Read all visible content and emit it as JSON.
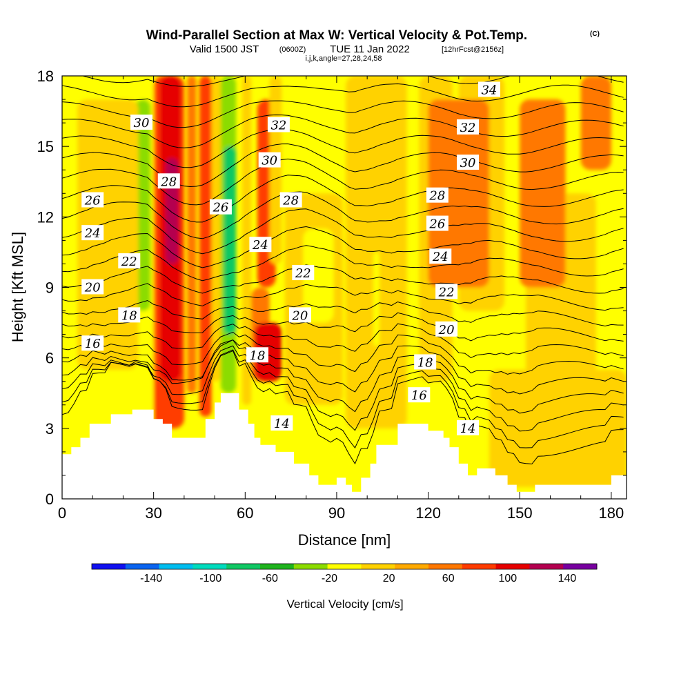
{
  "header": {
    "title_main": "Wind-Parallel Section at Max W: Vertical Velocity & Pot.Temp.",
    "title_mark": "(C)",
    "valid_prefix": "Valid 1500 JST",
    "valid_utc": "(0600Z)",
    "valid_date": "TUE 11 Jan 2022",
    "forecast": "[12hrFcst@2156z]",
    "indices": "i,j,k,angle=27,28,24,58"
  },
  "chart_data": {
    "type": "heatmap",
    "xlabel": "Distance [nm]",
    "ylabel": "Height [Kft MSL]",
    "xlim": [
      0,
      185
    ],
    "ylim": [
      0,
      18
    ],
    "xticks": [
      0,
      30,
      60,
      90,
      120,
      150,
      180
    ],
    "yticks": [
      0,
      3,
      6,
      9,
      12,
      15,
      18
    ],
    "grid": false,
    "background_color": "#ffff00",
    "colorbar": {
      "title": "Vertical Velocity [cm/s]",
      "ticks": [
        -140,
        -100,
        -60,
        -20,
        20,
        60,
        100,
        140
      ],
      "boundaries": [
        -180,
        -160,
        -140,
        -120,
        -100,
        -80,
        -60,
        -40,
        -20,
        0,
        20,
        40,
        60,
        80,
        100,
        120,
        140,
        160
      ],
      "colors": [
        "#1010f0",
        "#0a64f0",
        "#00bef0",
        "#00dcbe",
        "#10c864",
        "#20b41e",
        "#8cdc00",
        "#ffff00",
        "#ffd200",
        "#ffaa00",
        "#ff7800",
        "#ff3c00",
        "#e60000",
        "#b40050",
        "#7800a0"
      ]
    },
    "terrain_kft": [
      [
        0,
        1.9
      ],
      [
        3,
        1.9
      ],
      [
        3,
        2.2
      ],
      [
        6,
        2.2
      ],
      [
        6,
        2.6
      ],
      [
        9,
        2.6
      ],
      [
        9,
        3.2
      ],
      [
        16,
        3.2
      ],
      [
        16,
        3.6
      ],
      [
        23,
        3.6
      ],
      [
        23,
        3.8
      ],
      [
        30,
        3.8
      ],
      [
        30,
        3.4
      ],
      [
        33,
        3.4
      ],
      [
        33,
        3.2
      ],
      [
        36,
        3.2
      ],
      [
        36,
        2.6
      ],
      [
        47,
        2.6
      ],
      [
        47,
        3.4
      ],
      [
        50,
        3.4
      ],
      [
        50,
        4.1
      ],
      [
        52,
        4.1
      ],
      [
        52,
        4.5
      ],
      [
        58,
        4.5
      ],
      [
        58,
        3.8
      ],
      [
        61,
        3.8
      ],
      [
        61,
        3.2
      ],
      [
        63,
        3.2
      ],
      [
        63,
        2.6
      ],
      [
        65,
        2.6
      ],
      [
        65,
        2.3
      ],
      [
        70,
        2.3
      ],
      [
        70,
        2.0
      ],
      [
        76,
        2.0
      ],
      [
        76,
        1.5
      ],
      [
        81,
        1.5
      ],
      [
        81,
        1.0
      ],
      [
        84,
        1.0
      ],
      [
        84,
        0.6
      ],
      [
        90,
        0.6
      ],
      [
        90,
        0.9
      ],
      [
        93,
        0.9
      ],
      [
        93,
        0.6
      ],
      [
        95,
        0.6
      ],
      [
        95,
        0.3
      ],
      [
        98,
        0.3
      ],
      [
        98,
        0.9
      ],
      [
        101,
        0.9
      ],
      [
        101,
        1.5
      ],
      [
        103,
        1.5
      ],
      [
        103,
        2.3
      ],
      [
        110,
        2.3
      ],
      [
        110,
        3.2
      ],
      [
        120,
        3.2
      ],
      [
        120,
        2.9
      ],
      [
        125,
        2.9
      ],
      [
        125,
        2.6
      ],
      [
        127,
        2.6
      ],
      [
        127,
        2.2
      ],
      [
        130,
        2.2
      ],
      [
        130,
        1.5
      ],
      [
        133,
        1.5
      ],
      [
        133,
        1.0
      ],
      [
        136,
        1.0
      ],
      [
        136,
        1.3
      ],
      [
        142,
        1.3
      ],
      [
        142,
        1.0
      ],
      [
        146,
        1.0
      ],
      [
        146,
        0.6
      ],
      [
        149,
        0.6
      ],
      [
        149,
        0.3
      ],
      [
        155,
        0.3
      ],
      [
        155,
        0.6
      ],
      [
        180,
        0.6
      ],
      [
        180,
        1.0
      ],
      [
        185,
        1.0
      ]
    ],
    "velocity_bands": [
      {
        "x": [
          23,
          30
        ],
        "y": [
          3.0,
          18
        ],
        "value": -30
      },
      {
        "x": [
          24,
          29
        ],
        "y": [
          8.0,
          17
        ],
        "value": -60
      },
      {
        "x": [
          30,
          40
        ],
        "y": [
          3.0,
          18
        ],
        "value": 50
      },
      {
        "x": [
          32,
          39
        ],
        "y": [
          5.0,
          18
        ],
        "value": 70
      },
      {
        "x": [
          34,
          38
        ],
        "y": [
          10.0,
          14.5
        ],
        "value": 90
      },
      {
        "x": [
          41,
          44
        ],
        "y": [
          4.5,
          18
        ],
        "value": 30
      },
      {
        "x": [
          45,
          49
        ],
        "y": [
          3.5,
          18
        ],
        "value": 50
      },
      {
        "x": [
          49,
          52
        ],
        "y": [
          5.0,
          18
        ],
        "value": -20
      },
      {
        "x": [
          52,
          57
        ],
        "y": [
          4.5,
          18
        ],
        "value": -60
      },
      {
        "x": [
          53,
          57
        ],
        "y": [
          7.0,
          15.0
        ],
        "value": -90
      },
      {
        "x": [
          59,
          62
        ],
        "y": [
          4.0,
          18
        ],
        "value": -20
      },
      {
        "x": [
          62,
          68
        ],
        "y": [
          5.0,
          9.0
        ],
        "value": 30
      },
      {
        "x": [
          63,
          72
        ],
        "y": [
          5.0,
          7.5
        ],
        "value": 60
      },
      {
        "x": [
          64,
          70
        ],
        "y": [
          9.0,
          17
        ],
        "value": 40
      },
      {
        "x": [
          68,
          72
        ],
        "y": [
          10.0,
          18
        ],
        "value": -20
      },
      {
        "x": [
          73,
          92
        ],
        "y": [
          4.0,
          13
        ],
        "value": -15
      },
      {
        "x": [
          79,
          89
        ],
        "y": [
          7.5,
          11.5
        ],
        "value": -30
      },
      {
        "x": [
          93,
          113
        ],
        "y": [
          3.0,
          18
        ],
        "value": -10
      },
      {
        "x": [
          102,
          104
        ],
        "y": [
          6.5,
          10.5
        ],
        "value": -30
      },
      {
        "x": [
          117,
          128
        ],
        "y": [
          5.0,
          18
        ],
        "value": -10
      },
      {
        "x": [
          130,
          145
        ],
        "y": [
          8.0,
          18
        ],
        "value": -10
      },
      {
        "x": [
          140,
          185
        ],
        "y": [
          0.5,
          5.5
        ],
        "value": -10
      },
      {
        "x": [
          152,
          175
        ],
        "y": [
          5.0,
          13
        ],
        "value": -10
      },
      {
        "x": [
          5,
          25
        ],
        "y": [
          5.5,
          17
        ],
        "value": -10
      },
      {
        "x": [
          120,
          140
        ],
        "y": [
          9.0,
          17
        ],
        "value": 30
      },
      {
        "x": [
          150,
          165
        ],
        "y": [
          9.0,
          17
        ],
        "value": 30
      },
      {
        "x": [
          170,
          180
        ],
        "y": [
          14.0,
          18
        ],
        "value": 30
      }
    ],
    "theta_contours": {
      "levels": [
        13,
        14,
        15,
        16,
        17,
        18,
        19,
        20,
        21,
        22,
        23,
        24,
        25,
        26,
        27,
        28,
        29,
        30,
        31,
        32,
        33,
        34,
        35
      ],
      "labels": [
        {
          "text": "14",
          "x": 72,
          "y": 3.2
        },
        {
          "text": "14",
          "x": 133,
          "y": 3.0
        },
        {
          "text": "16",
          "x": 10,
          "y": 6.6
        },
        {
          "text": "16",
          "x": 117,
          "y": 4.4
        },
        {
          "text": "18",
          "x": 22,
          "y": 7.8
        },
        {
          "text": "18",
          "x": 64,
          "y": 6.1
        },
        {
          "text": "18",
          "x": 119,
          "y": 5.8
        },
        {
          "text": "20",
          "x": 10,
          "y": 9.0
        },
        {
          "text": "20",
          "x": 78,
          "y": 7.8
        },
        {
          "text": "20",
          "x": 126,
          "y": 7.2
        },
        {
          "text": "22",
          "x": 22,
          "y": 10.1
        },
        {
          "text": "22",
          "x": 79,
          "y": 9.6
        },
        {
          "text": "22",
          "x": 126,
          "y": 8.8
        },
        {
          "text": "24",
          "x": 10,
          "y": 11.3
        },
        {
          "text": "24",
          "x": 65,
          "y": 10.8
        },
        {
          "text": "24",
          "x": 124,
          "y": 10.3
        },
        {
          "text": "26",
          "x": 10,
          "y": 12.7
        },
        {
          "text": "26",
          "x": 52,
          "y": 12.4
        },
        {
          "text": "26",
          "x": 123,
          "y": 11.7
        },
        {
          "text": "28",
          "x": 35,
          "y": 13.5
        },
        {
          "text": "28",
          "x": 75,
          "y": 12.7
        },
        {
          "text": "28",
          "x": 123,
          "y": 12.9
        },
        {
          "text": "30",
          "x": 26,
          "y": 16.0
        },
        {
          "text": "30",
          "x": 68,
          "y": 14.4
        },
        {
          "text": "30",
          "x": 133,
          "y": 14.3
        },
        {
          "text": "32",
          "x": 71,
          "y": 15.9
        },
        {
          "text": "32",
          "x": 133,
          "y": 15.8
        },
        {
          "text": "34",
          "x": 140,
          "y": 17.4
        }
      ]
    }
  }
}
